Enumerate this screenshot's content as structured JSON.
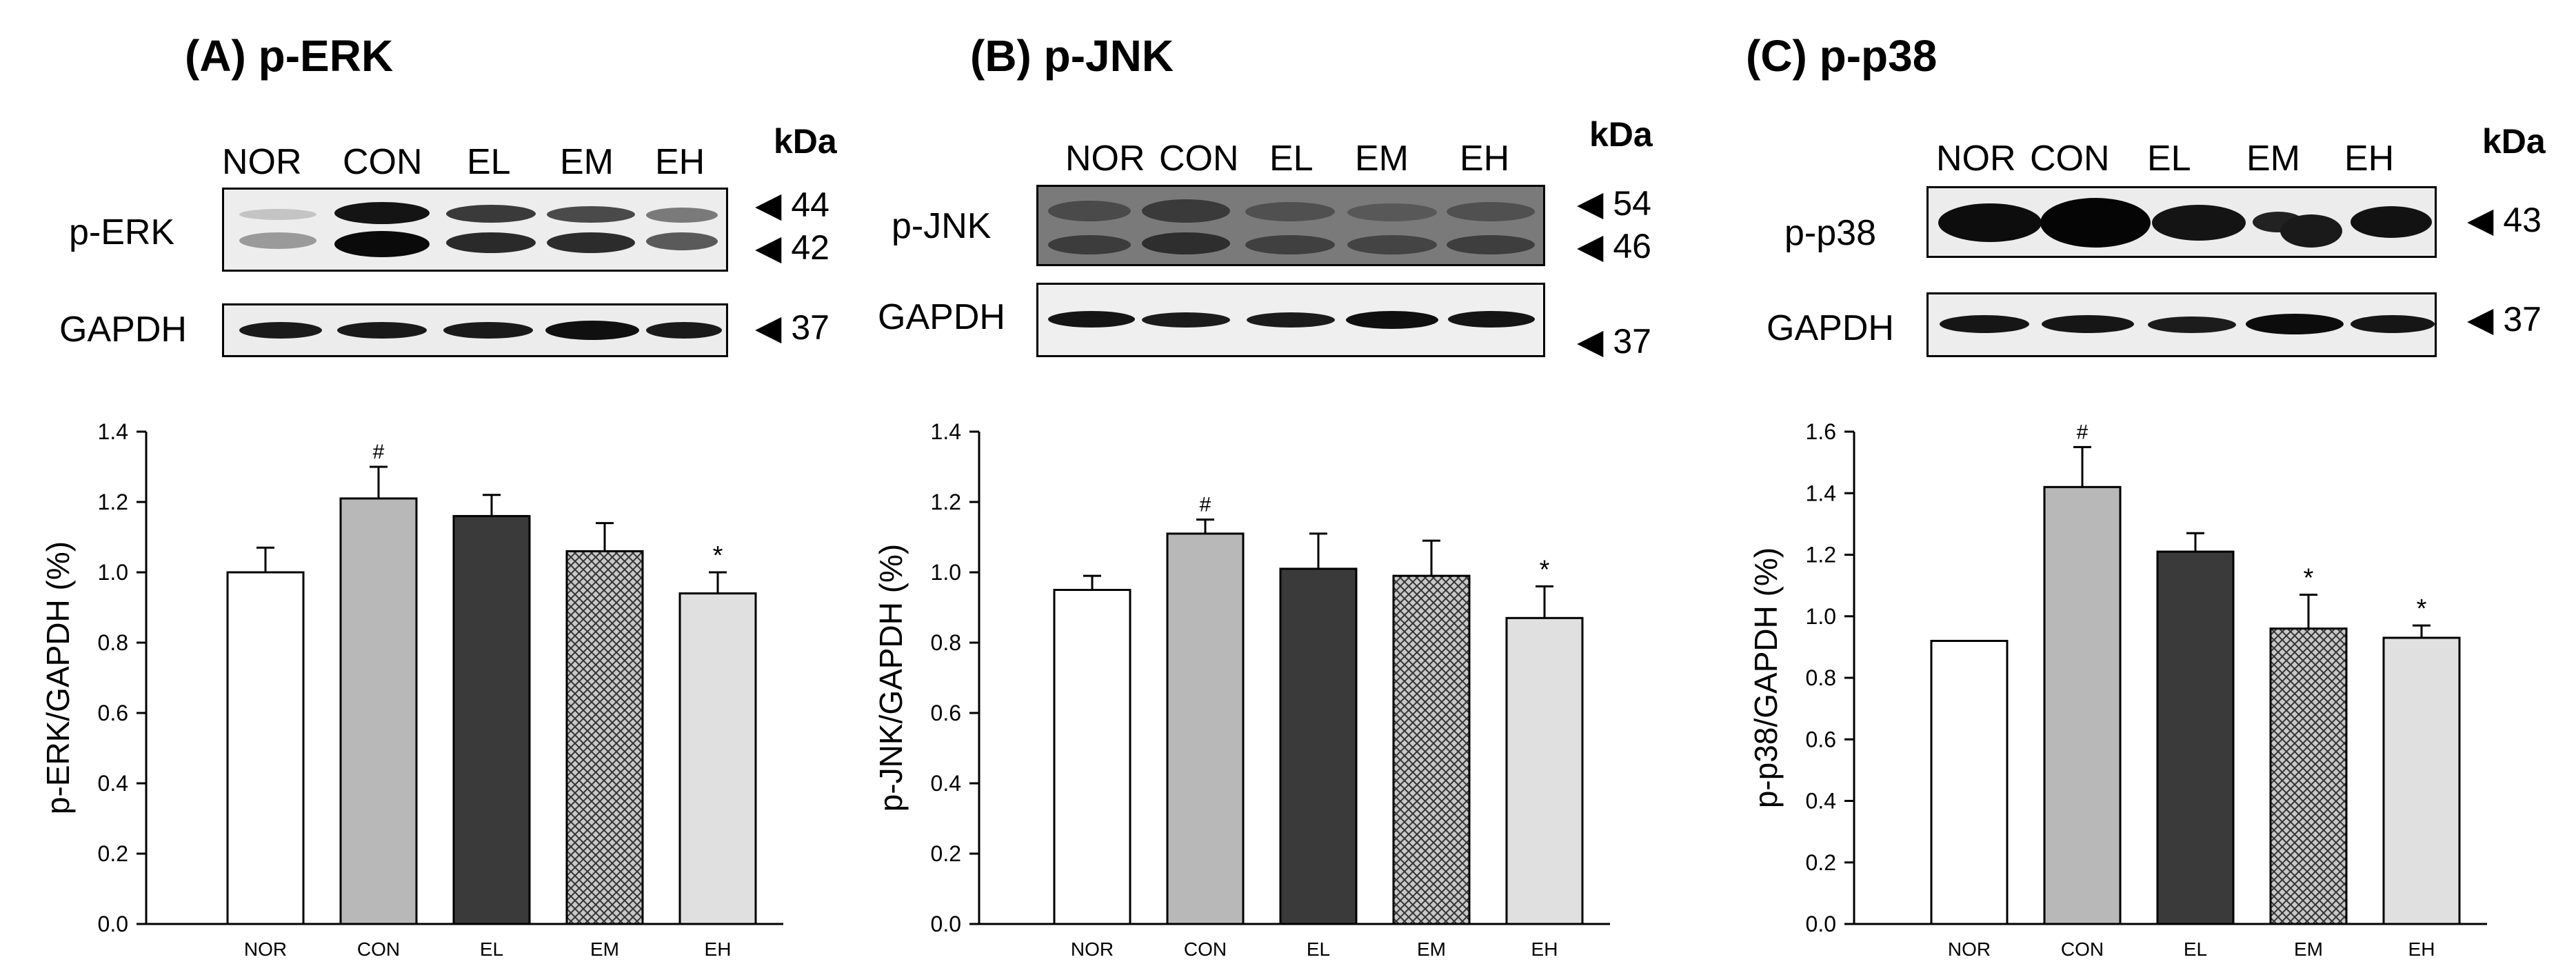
{
  "blots": [
    {
      "panel_title": "(A) p-ERK",
      "kda_label": "kDa",
      "lanes": [
        "NOR",
        "CON",
        "EL",
        "EM",
        "EH"
      ],
      "target_label": "p-ERK",
      "target_markers": [
        "44",
        "42"
      ],
      "loading_label": "GAPDH",
      "loading_markers": [
        "37"
      ]
    },
    {
      "panel_title": "(B) p-JNK",
      "kda_label": "kDa",
      "lanes": [
        "NOR",
        "CON",
        "EL",
        "EM",
        "EH"
      ],
      "target_label": "p-JNK",
      "target_markers": [
        "54",
        "46"
      ],
      "loading_label": "GAPDH",
      "loading_markers": [
        "37"
      ]
    },
    {
      "panel_title": "(C) p-p38",
      "kda_label": "kDa",
      "lanes": [
        "NOR",
        "CON",
        "EL",
        "EM",
        "EH"
      ],
      "target_label": "p-p38",
      "target_markers": [
        "43"
      ],
      "loading_label": "GAPDH",
      "loading_markers": [
        "37"
      ]
    }
  ],
  "chart_data": [
    {
      "type": "bar",
      "title": "",
      "xlabel": "",
      "ylabel": "p-ERK/GAPDH (%)",
      "categories": [
        "NOR",
        "CON",
        "EL",
        "EM",
        "EH"
      ],
      "values": [
        1.0,
        1.21,
        1.16,
        1.06,
        0.94
      ],
      "errors": [
        0.07,
        0.09,
        0.06,
        0.08,
        0.06
      ],
      "annotations": [
        "",
        "#",
        "",
        "",
        "*"
      ],
      "ylim": [
        0,
        1.4
      ],
      "yticks": [
        "0.0",
        "0.2",
        "0.4",
        "0.6",
        "0.8",
        "1.0",
        "1.2",
        "1.4"
      ],
      "fills": [
        "white",
        "gray",
        "dark",
        "crosshatch",
        "lightgray"
      ]
    },
    {
      "type": "bar",
      "title": "",
      "xlabel": "",
      "ylabel": "p-JNK/GAPDH (%)",
      "categories": [
        "NOR",
        "CON",
        "EL",
        "EM",
        "EH"
      ],
      "values": [
        0.95,
        1.11,
        1.01,
        0.99,
        0.87
      ],
      "errors": [
        0.04,
        0.04,
        0.1,
        0.1,
        0.09
      ],
      "annotations": [
        "",
        "#",
        "",
        "",
        "*"
      ],
      "ylim": [
        0,
        1.4
      ],
      "yticks": [
        "0.0",
        "0.2",
        "0.4",
        "0.6",
        "0.8",
        "1.0",
        "1.2",
        "1.4"
      ],
      "fills": [
        "white",
        "gray",
        "dark",
        "crosshatch",
        "lightgray"
      ]
    },
    {
      "type": "bar",
      "title": "",
      "xlabel": "",
      "ylabel": "p-p38/GAPDH (%)",
      "categories": [
        "NOR",
        "CON",
        "EL",
        "EM",
        "EH"
      ],
      "values": [
        0.92,
        1.42,
        1.21,
        0.96,
        0.93
      ],
      "errors": [
        0.0,
        0.13,
        0.06,
        0.11,
        0.04
      ],
      "annotations": [
        "",
        "#",
        "",
        "*",
        "*"
      ],
      "ylim": [
        0,
        1.6
      ],
      "yticks": [
        "0.0",
        "0.2",
        "0.4",
        "0.6",
        "0.8",
        "1.0",
        "1.2",
        "1.4",
        "1.6"
      ],
      "fills": [
        "white",
        "gray",
        "dark",
        "crosshatch",
        "lightgray"
      ]
    }
  ],
  "colors": {
    "gray": "#b8b8b8",
    "dark": "#3a3a3a",
    "lightgray": "#e0e0e0",
    "white": "#ffffff",
    "hatch": "#333333"
  }
}
